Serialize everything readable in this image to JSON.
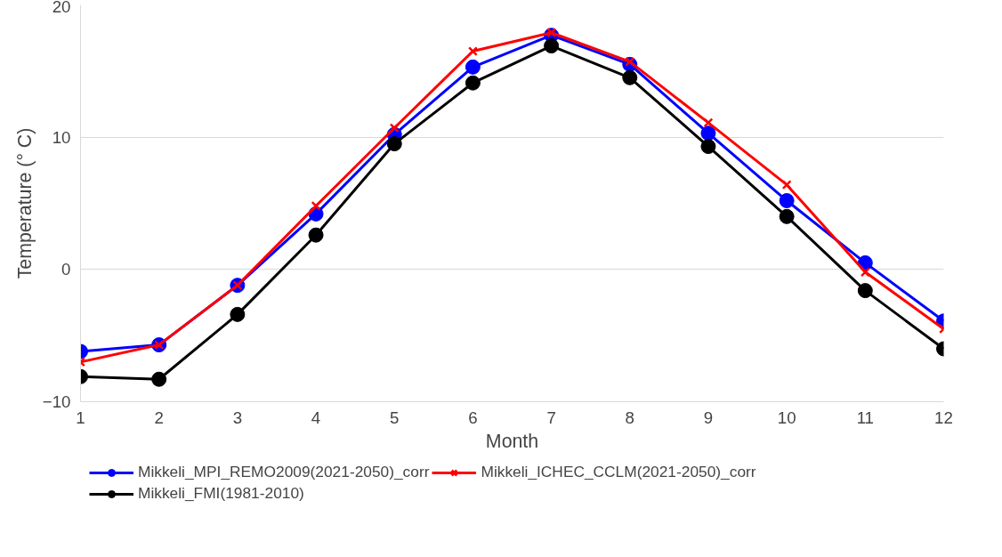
{
  "chart_data": {
    "type": "line",
    "xlabel": "Month",
    "ylabel": "Temperature (° C)",
    "x": [
      1,
      2,
      3,
      4,
      5,
      6,
      7,
      8,
      9,
      10,
      11,
      12
    ],
    "xlim": [
      1,
      12
    ],
    "xticks": [
      1,
      2,
      3,
      4,
      5,
      6,
      7,
      8,
      9,
      10,
      11,
      12
    ],
    "ylim": [
      -10,
      20
    ],
    "yticks": [
      -10,
      0,
      10,
      20
    ],
    "grid": "y",
    "legend": "bottom",
    "marker": "circle",
    "line_style": "solid",
    "series": [
      {
        "name": "Mikkeli_MPI_REMO2009(2021-2050)_corr",
        "color": "#0000ff",
        "marker": "circle",
        "values": [
          -6.2,
          -5.7,
          -1.2,
          4.2,
          10.2,
          15.3,
          17.7,
          15.5,
          10.3,
          5.2,
          0.5,
          -3.9
        ]
      },
      {
        "name": "Mikkeli_ICHEC_CCLM(2021-2050)_corr",
        "color": "#ff0000",
        "marker": "cross",
        "values": [
          -7.0,
          -5.7,
          -1.2,
          4.8,
          10.7,
          16.5,
          17.9,
          15.7,
          11.1,
          6.4,
          -0.2,
          -4.5
        ]
      },
      {
        "name": "Mikkeli_FMI(1981-2010)",
        "color": "#000000",
        "marker": "circle",
        "values": [
          -8.1,
          -8.3,
          -3.4,
          2.6,
          9.5,
          14.1,
          16.9,
          14.5,
          9.3,
          4.0,
          -1.6,
          -6.0
        ]
      }
    ]
  }
}
